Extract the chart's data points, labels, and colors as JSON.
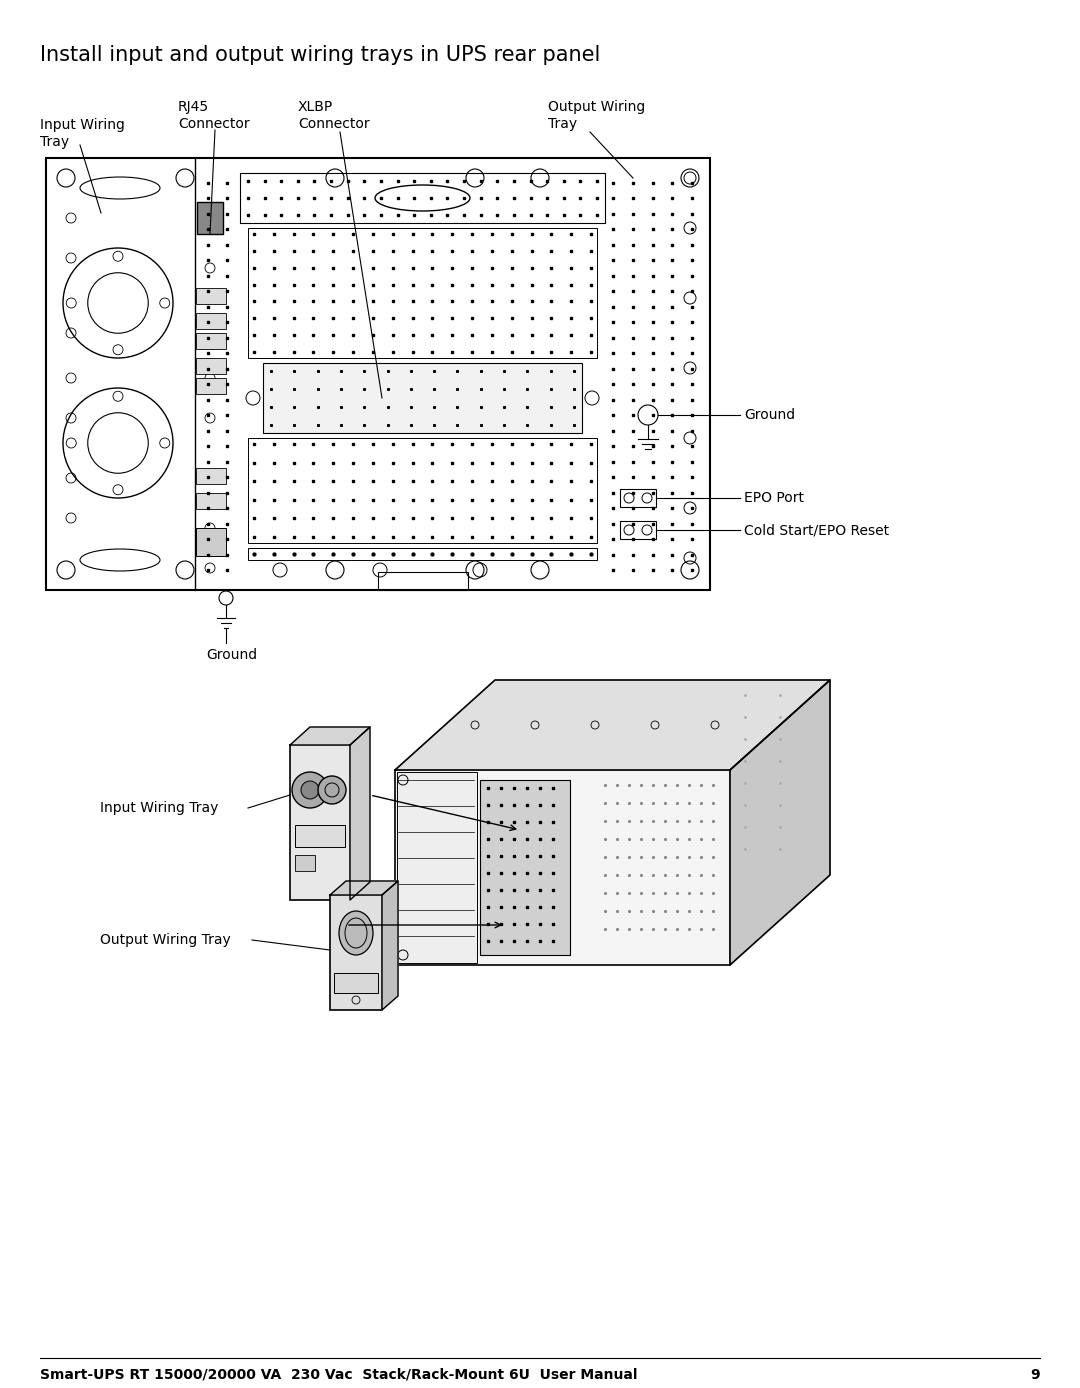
{
  "title": "Install input and output wiring trays in UPS rear panel",
  "title_fontsize": 15,
  "footer_text": "Smart-UPS RT 15000/20000 VA  230 Vac  Stack/Rack-Mount 6U  User Manual",
  "footer_page": "9",
  "footer_fontsize": 10,
  "bg_color": "#ffffff",
  "text_color": "#000000",
  "label_fontsize": 10
}
